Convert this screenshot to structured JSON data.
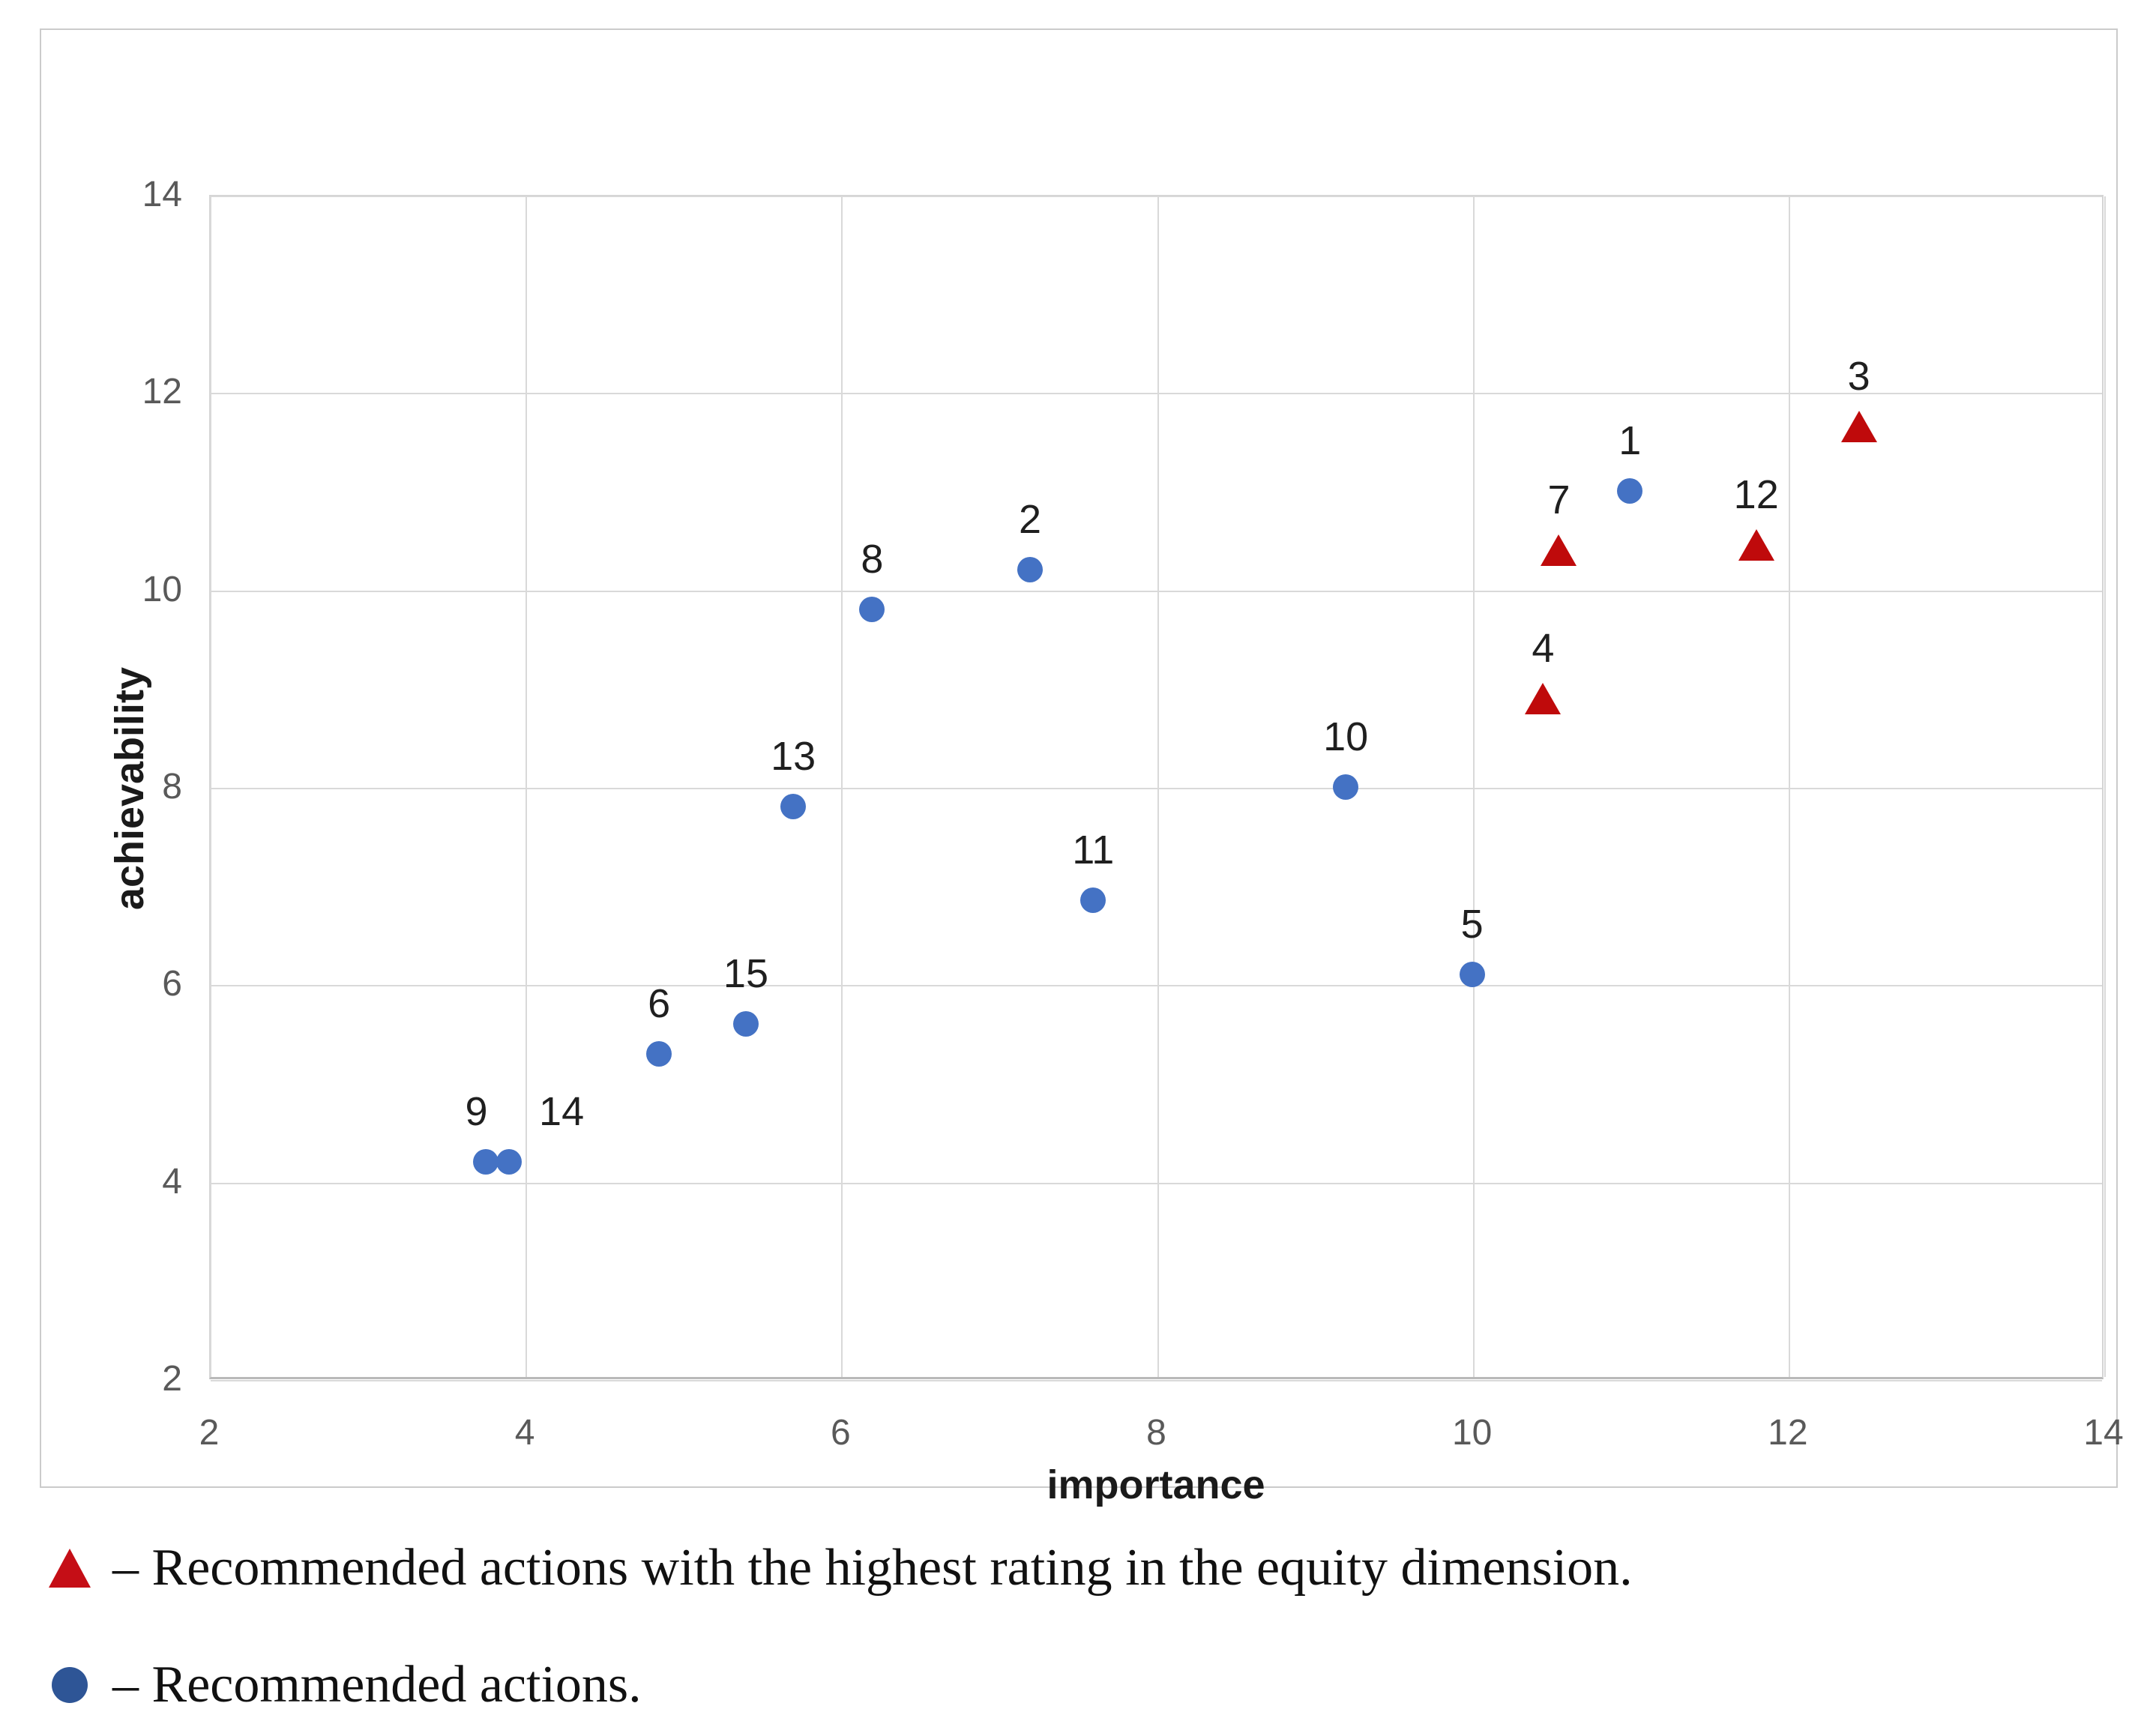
{
  "chart_data": {
    "type": "scatter",
    "title": "",
    "xlabel": "importance",
    "ylabel": "achievability",
    "xlim": [
      2,
      14
    ],
    "ylim": [
      2,
      14
    ],
    "xticks": [
      2,
      4,
      6,
      8,
      10,
      12,
      14
    ],
    "yticks": [
      2,
      4,
      6,
      8,
      10,
      12,
      14
    ],
    "grid": true,
    "legend_position": "below-chart",
    "series": [
      {
        "name": "Recommended actions",
        "marker": "circle",
        "color": "#4472c4",
        "points": [
          {
            "label": "1",
            "x": 11.0,
            "y": 11.0
          },
          {
            "label": "2",
            "x": 7.2,
            "y": 10.2
          },
          {
            "label": "5",
            "x": 10.0,
            "y": 6.1
          },
          {
            "label": "6",
            "x": 4.85,
            "y": 5.3
          },
          {
            "label": "8",
            "x": 6.2,
            "y": 9.8
          },
          {
            "label": "9",
            "x": 3.75,
            "y": 4.2,
            "label_dx": -12
          },
          {
            "label": "10",
            "x": 9.2,
            "y": 8.0
          },
          {
            "label": "11",
            "x": 7.6,
            "y": 6.85
          },
          {
            "label": "13",
            "x": 5.7,
            "y": 7.8
          },
          {
            "label": "14",
            "x": 3.9,
            "y": 4.2,
            "label_dx": 70
          },
          {
            "label": "15",
            "x": 5.4,
            "y": 5.6
          }
        ]
      },
      {
        "name": "Recommended actions with the highest rating in the equity dimension",
        "marker": "triangle",
        "color": "#bf0a0b",
        "points": [
          {
            "label": "3",
            "x": 12.45,
            "y": 11.65
          },
          {
            "label": "4",
            "x": 10.45,
            "y": 8.9
          },
          {
            "label": "7",
            "x": 10.55,
            "y": 10.4
          },
          {
            "label": "12",
            "x": 11.8,
            "y": 10.45
          }
        ]
      }
    ],
    "palette": {
      "grid_color": "#d9d9d9",
      "axis_line_color": "#b9b9b9",
      "tick_label_color": "#595959",
      "axis_title_color": "#1a1a1a",
      "point_blue": "#4472c4",
      "point_red": "#bf0a0b"
    }
  },
  "legend": {
    "rows": [
      {
        "icon": "triangle",
        "color": "#c50e16",
        "text": "– Recommended actions with the highest rating in the equity dimension."
      },
      {
        "icon": "circle",
        "color": "#2e5596",
        "text": "– Recommended actions."
      }
    ]
  }
}
